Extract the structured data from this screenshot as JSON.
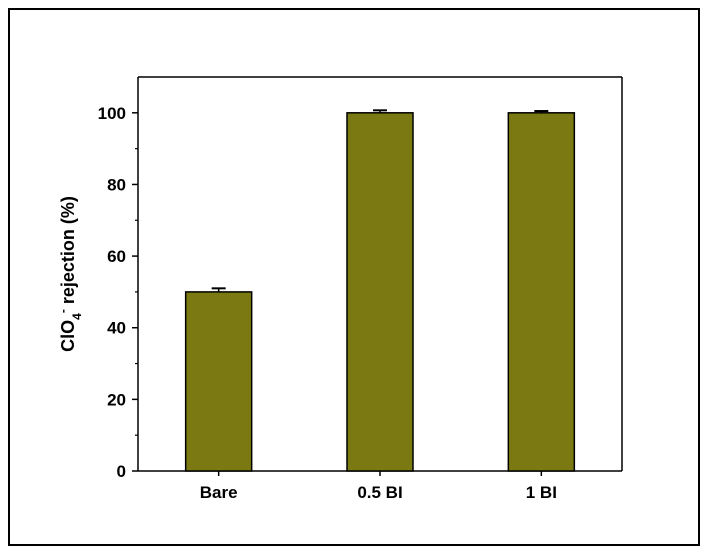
{
  "chart_data": {
    "type": "bar",
    "categories": [
      "Bare",
      "0.5 BI",
      "1 BI"
    ],
    "values": [
      50,
      100,
      100
    ],
    "errors": [
      1.0,
      0.7,
      0.5
    ],
    "ylabel": {
      "pre": "ClO",
      "sub": "4",
      "sup": "-",
      "post": " rejection (%)"
    },
    "ylim": [
      0,
      110
    ],
    "yticks": [
      0,
      20,
      40,
      60,
      80,
      100
    ],
    "grid": false,
    "bar_color": "#7b7a12",
    "bar_edge_color": "#000000"
  }
}
